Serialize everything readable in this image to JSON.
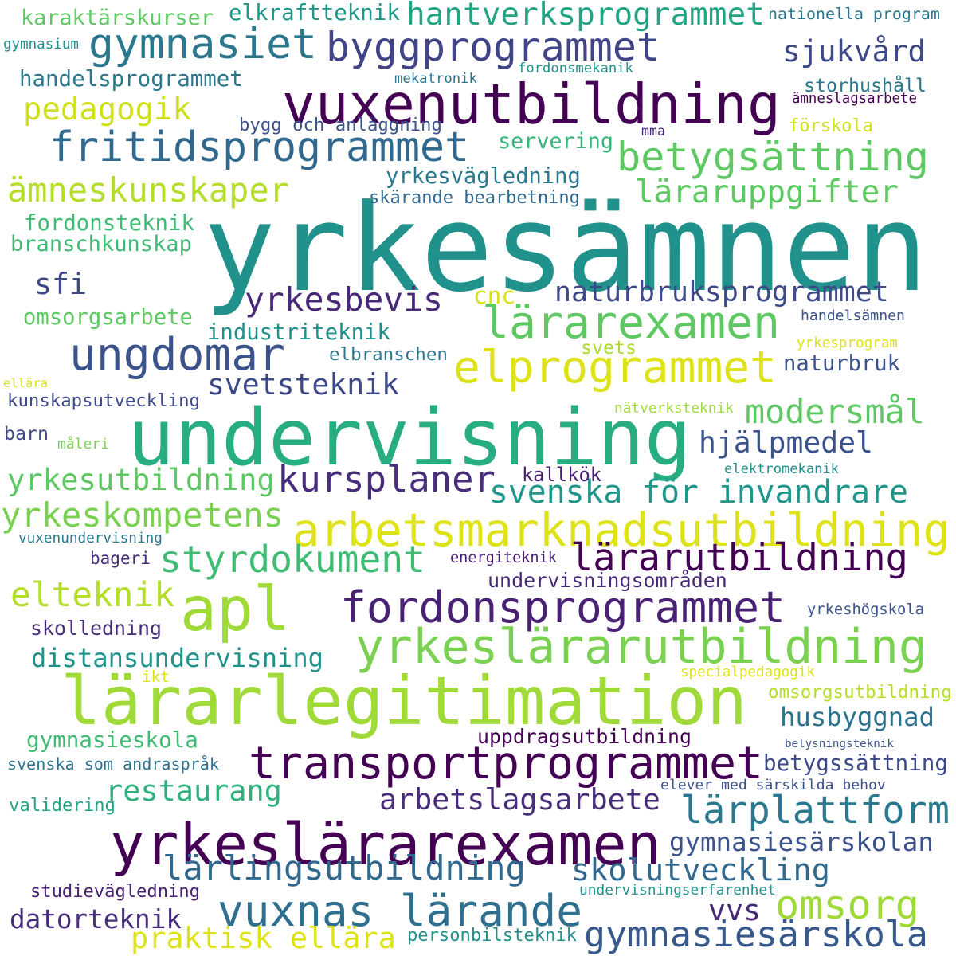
{
  "words": [
    {
      "text": "yrkesämnen",
      "color": "#21918c"
    },
    {
      "text": "undervisning",
      "color": "#27ad81"
    },
    {
      "text": "lärarlegitimation",
      "color": "#a0da39"
    },
    {
      "text": "yrkeslärarexamen",
      "color": "#440154"
    },
    {
      "text": "vuxenutbildning",
      "color": "#440154"
    },
    {
      "text": "transportprogrammet",
      "color": "#440154"
    },
    {
      "text": "arbetsmarknadsutbildning",
      "color": "#dde318"
    },
    {
      "text": "yrkeslärarutbildning",
      "color": "#7ad151"
    },
    {
      "text": "apl",
      "color": "#a0da39"
    },
    {
      "text": "fordonsprogrammet",
      "color": "#482173"
    },
    {
      "text": "vuxnas lärande",
      "color": "#2e6e8e"
    },
    {
      "text": "fritidsprogrammet",
      "color": "#31688e"
    },
    {
      "text": "ungdomar",
      "color": "#3b528b"
    },
    {
      "text": "elprogrammet",
      "color": "#dde318"
    },
    {
      "text": "lärarexamen",
      "color": "#5ec962"
    },
    {
      "text": "byggprogrammet",
      "color": "#414487"
    },
    {
      "text": "gymnasiet",
      "color": "#2a788e"
    },
    {
      "text": "betygsättning",
      "color": "#5ec962"
    },
    {
      "text": "lärplattform",
      "color": "#2a788e"
    },
    {
      "text": "lärarutbildning",
      "color": "#440154"
    },
    {
      "text": "omsorg",
      "color": "#a0da39"
    },
    {
      "text": "kursplaner",
      "color": "#472d7b"
    },
    {
      "text": "styrdokument",
      "color": "#3fbc73"
    },
    {
      "text": "skolutveckling",
      "color": "#31688e"
    },
    {
      "text": "lärlingsutbildning",
      "color": "#31688e"
    },
    {
      "text": "ämneskunskaper",
      "color": "#b5de2b"
    },
    {
      "text": "svenska för invandrare",
      "color": "#1f988b"
    },
    {
      "text": "yrkesutbildning",
      "color": "#5ec962"
    },
    {
      "text": "yrkeskompetens",
      "color": "#7ad151"
    },
    {
      "text": "naturbruksprogrammet",
      "color": "#3e4989"
    },
    {
      "text": "hantverksprogrammet",
      "color": "#21a585"
    },
    {
      "text": "sjukvård",
      "color": "#3e4989"
    },
    {
      "text": "gymnasiesärskola",
      "color": "#38598c"
    },
    {
      "text": "praktisk ellära",
      "color": "#dde318"
    },
    {
      "text": "elteknik",
      "color": "#b5de2b"
    },
    {
      "text": "yrkesbevis",
      "color": "#482878"
    },
    {
      "text": "pedagogik",
      "color": "#d0e11c"
    },
    {
      "text": "svetsteknik",
      "color": "#3e4989"
    },
    {
      "text": "arbetslagsarbete",
      "color": "#472d7b"
    },
    {
      "text": "modersmål",
      "color": "#5ec962"
    },
    {
      "text": "distansundervisning",
      "color": "#20928c"
    },
    {
      "text": "restaurang",
      "color": "#2db27d"
    },
    {
      "text": "läraruppgifter",
      "color": "#5ec962"
    },
    {
      "text": "hjälpmedel",
      "color": "#3b528b"
    },
    {
      "text": "gymnasiesärskolan",
      "color": "#3b528b"
    },
    {
      "text": "datorteknik",
      "color": "#472d7b"
    },
    {
      "text": "husbyggnad",
      "color": "#2c728e"
    },
    {
      "text": "sfi",
      "color": "#3e4989"
    },
    {
      "text": "yrkesvägledning",
      "color": "#2a788e"
    },
    {
      "text": "vvs",
      "color": "#482878"
    },
    {
      "text": "uppdragsutbildning",
      "color": "#440154"
    },
    {
      "text": "gymnasieskola",
      "color": "#3fbc73"
    },
    {
      "text": "servering",
      "color": "#35b779"
    },
    {
      "text": "storhushåll",
      "color": "#2a788e"
    },
    {
      "text": "betygssättning",
      "color": "#3e4989"
    },
    {
      "text": "handelsprogrammet",
      "color": "#2a788e"
    },
    {
      "text": "fordonsteknik",
      "color": "#3fbc73"
    },
    {
      "text": "industriteknik",
      "color": "#20928c"
    },
    {
      "text": "karaktärskurser",
      "color": "#5ec962"
    },
    {
      "text": "elkraftteknik",
      "color": "#1f988b"
    },
    {
      "text": "branschkunskap",
      "color": "#3fbc73"
    },
    {
      "text": "omsorgsarbete",
      "color": "#5ec962"
    },
    {
      "text": "undervisningsområden",
      "color": "#482878"
    },
    {
      "text": "naturbruk",
      "color": "#3b528b"
    },
    {
      "text": "bygg och anläggning",
      "color": "#3b528b"
    },
    {
      "text": "kunskapsutveckling",
      "color": "#3e4989"
    },
    {
      "text": "svenska som andraspråk",
      "color": "#2c728e"
    },
    {
      "text": "skärande bearbetning",
      "color": "#31688e"
    },
    {
      "text": "studievägledning",
      "color": "#482173"
    },
    {
      "text": "personbilsteknik",
      "color": "#21918c"
    },
    {
      "text": "elbranschen",
      "color": "#2a788e"
    },
    {
      "text": "validering",
      "color": "#21a585"
    },
    {
      "text": "skolledning",
      "color": "#472d7b"
    },
    {
      "text": "elever med särskilda behov",
      "color": "#3b528b"
    },
    {
      "text": "handelsämnen",
      "color": "#3b528b"
    },
    {
      "text": "yrkeshögskola",
      "color": "#3b528b"
    },
    {
      "text": "omsorgsutbildning",
      "color": "#b5de2b"
    },
    {
      "text": "förskola",
      "color": "#d0e11c"
    },
    {
      "text": "nationella program",
      "color": "#2a788e"
    },
    {
      "text": "bageri",
      "color": "#472d7b"
    },
    {
      "text": "ikt",
      "color": "#dde318"
    },
    {
      "text": "cnc",
      "color": "#d8e219"
    },
    {
      "text": "svets",
      "color": "#addc30"
    },
    {
      "text": "barn",
      "color": "#3e4989"
    },
    {
      "text": "undervisningserfarenhet",
      "color": "#21918c"
    },
    {
      "text": "vuxenundervisning",
      "color": "#2a788e"
    },
    {
      "text": "ämneslagsarbete",
      "color": "#440154"
    },
    {
      "text": "fordonsmekanik",
      "color": "#21918c"
    },
    {
      "text": "mekatronik",
      "color": "#2c728e"
    },
    {
      "text": "mma",
      "color": "#482878"
    },
    {
      "text": "måleri",
      "color": "#7ad151"
    },
    {
      "text": "nätverksteknik",
      "color": "#a0da39"
    },
    {
      "text": "elektromekanik",
      "color": "#21918c"
    },
    {
      "text": "kallkök",
      "color": "#481f70"
    },
    {
      "text": "energiteknik",
      "color": "#481f70"
    },
    {
      "text": "specialpedagogik",
      "color": "#dde318"
    },
    {
      "text": "belysningsteknik",
      "color": "#3b528b"
    },
    {
      "text": "yrkesprogram",
      "color": "#dde318"
    },
    {
      "text": "gymnasium",
      "color": "#21918c"
    },
    {
      "text": "ellära",
      "color": "#dde318"
    }
  ]
}
